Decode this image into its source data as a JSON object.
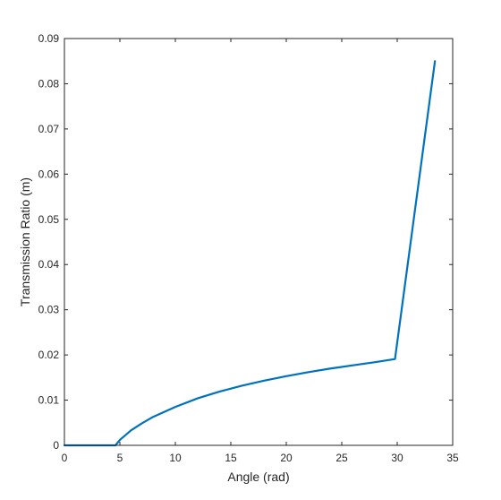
{
  "chart_data": {
    "type": "line",
    "title": "",
    "xlabel": "Angle (rad)",
    "ylabel": "Transmission Ratio (m)",
    "xlim": [
      0,
      35
    ],
    "ylim": [
      0,
      0.09
    ],
    "xticks": [
      0,
      5,
      10,
      15,
      20,
      25,
      30,
      35
    ],
    "xtick_labels": [
      "0",
      "5",
      "10",
      "15",
      "20",
      "25",
      "30",
      "35"
    ],
    "yticks": [
      0,
      0.01,
      0.02,
      0.03,
      0.04,
      0.05,
      0.06,
      0.07,
      0.08,
      0.09
    ],
    "ytick_labels": [
      "0",
      "0.01",
      "0.02",
      "0.03",
      "0.04",
      "0.05",
      "0.06",
      "0.07",
      "0.08",
      "0.09"
    ],
    "grid": false,
    "line_color": "#0072BD",
    "series": [
      {
        "x": [
          0,
          4.6,
          5,
          6,
          7,
          8,
          10,
          12,
          14,
          16,
          18,
          20,
          22,
          24,
          26,
          28,
          29.8,
          33.4
        ],
        "y": [
          0,
          0,
          0.0012,
          0.0033,
          0.0049,
          0.0063,
          0.0085,
          0.0104,
          0.0119,
          0.0132,
          0.0143,
          0.0153,
          0.0162,
          0.017,
          0.0177,
          0.0184,
          0.0191,
          0.085
        ]
      }
    ]
  }
}
